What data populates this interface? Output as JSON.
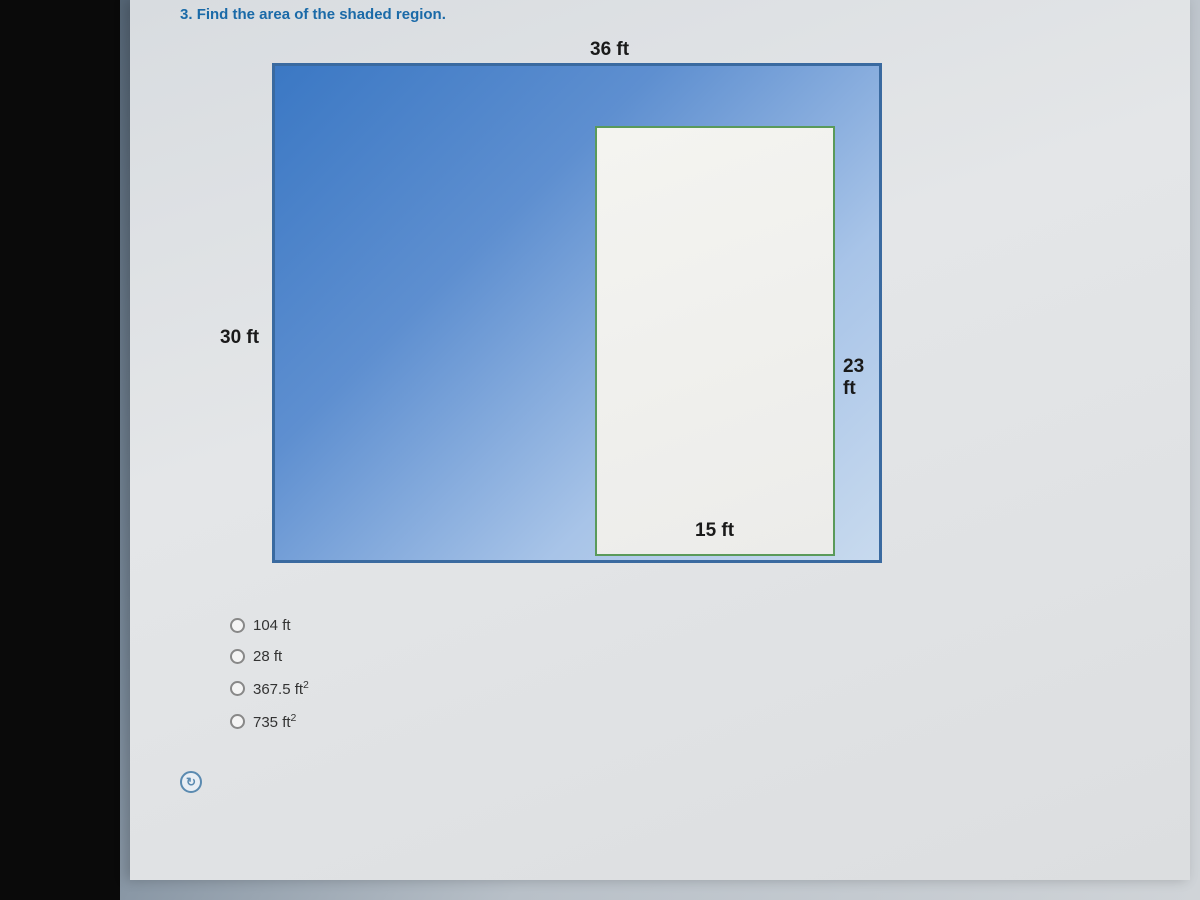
{
  "question": {
    "number": "3.",
    "prompt": "Find the area of the shaded region."
  },
  "diagram": {
    "type": "nested-rectangles-shaded",
    "outer": {
      "width_label": "36 ft",
      "height_label": "30 ft",
      "border_color": "#3a6aa0",
      "fill_gradient_from": "#3b78c4",
      "fill_gradient_to": "#c8daee"
    },
    "inner": {
      "width_label": "15 ft",
      "height_label": "23 ft",
      "border_color": "#5a9a5a",
      "fill_color": "#f4f4f0"
    },
    "label_fontsize_pt": 14,
    "label_color": "#1a1a1a"
  },
  "options": [
    {
      "label": "104 ft",
      "has_sup2": false
    },
    {
      "label": "28 ft",
      "has_sup2": false
    },
    {
      "label": "367.5 ft",
      "has_sup2": true
    },
    {
      "label": "735 ft",
      "has_sup2": true
    }
  ],
  "helper_icon_glyph": "↻",
  "colors": {
    "question_text": "#1a6aa8",
    "page_bg": "#e0e2e4",
    "radio_border": "#888888"
  }
}
